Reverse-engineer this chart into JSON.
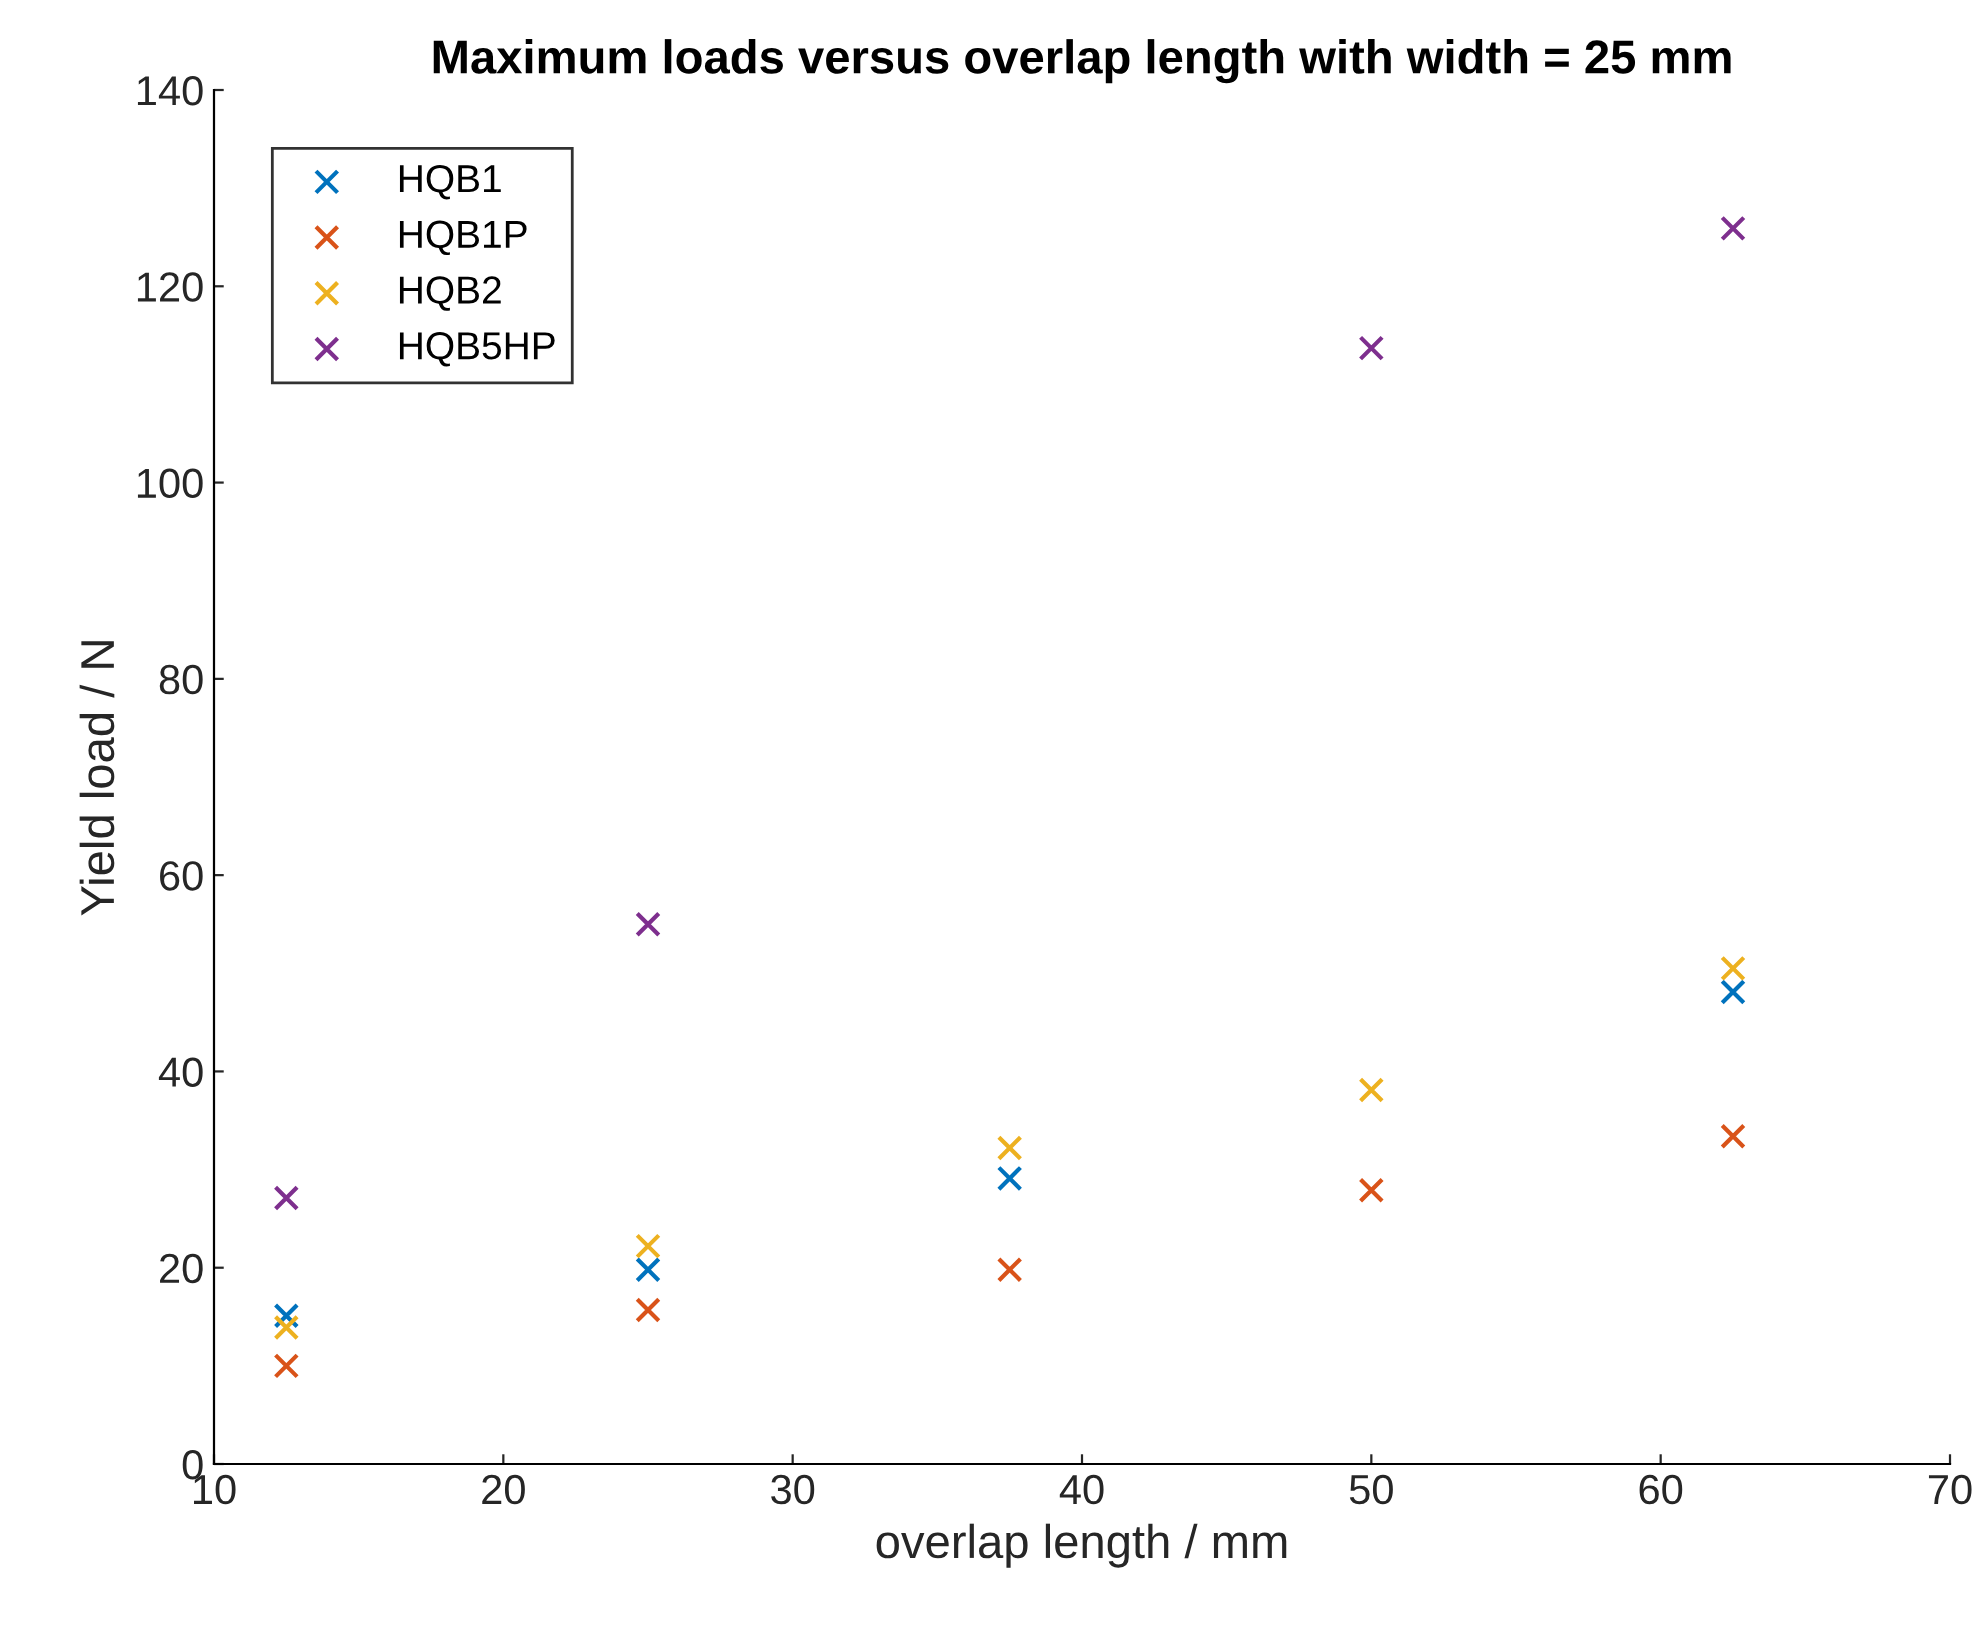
{
  "chart_data": {
    "type": "scatter",
    "title": "Maximum loads versus overlap length with width = 25 mm",
    "xlabel": "overlap length / mm",
    "ylabel": "Yield load / N",
    "x": [
      12.5,
      25,
      37.5,
      50,
      62.5
    ],
    "series": [
      {
        "name": "HQB1",
        "color": "#0072bd",
        "values": [
          15.1,
          19.8,
          29.1,
          null,
          48.1
        ]
      },
      {
        "name": "HQB1P",
        "color": "#d95319",
        "values": [
          10.0,
          15.7,
          19.8,
          27.9,
          33.4
        ]
      },
      {
        "name": "HQB2",
        "color": "#edb120",
        "values": [
          13.9,
          22.2,
          32.2,
          38.1,
          50.5
        ]
      },
      {
        "name": "HQB5HP",
        "color": "#7e2f8e",
        "values": [
          27.1,
          55.0,
          null,
          113.7,
          125.9
        ]
      }
    ],
    "xlim": [
      10,
      70
    ],
    "xticks": [
      10,
      20,
      30,
      40,
      50,
      60,
      70
    ],
    "ylim": [
      0,
      140
    ],
    "yticks": [
      0,
      20,
      40,
      60,
      80,
      100,
      120,
      140
    ],
    "marker": "cross",
    "legend": "top left",
    "grid": false
  }
}
